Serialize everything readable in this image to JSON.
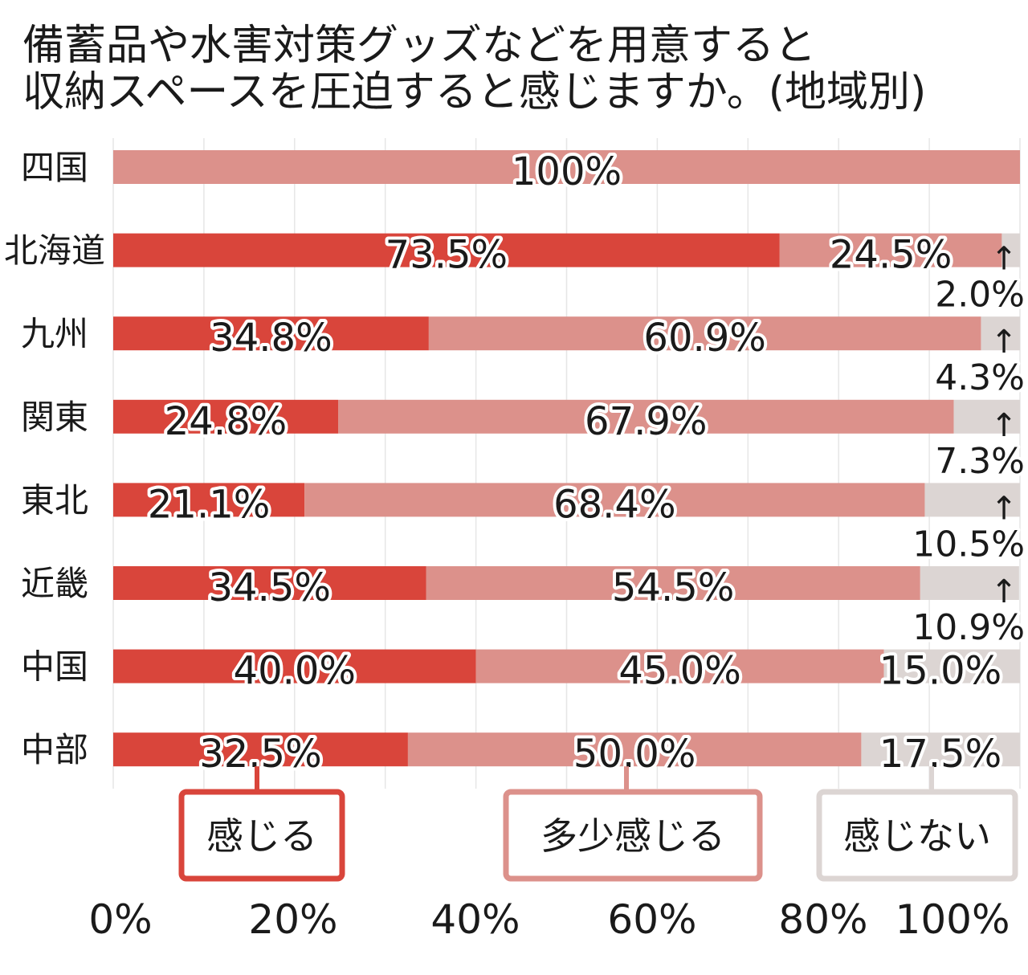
{
  "chart_data": {
    "type": "bar",
    "orientation": "horizontal",
    "stacked": true,
    "title": [
      "備蓄品や水害対策グッズなどを用意すると",
      "収納スペースを圧迫すると感じますか。(地域別)"
    ],
    "categories": [
      "四国",
      "北海道",
      "九州",
      "関東",
      "東北",
      "近畿",
      "中国",
      "中部"
    ],
    "series": [
      {
        "name": "感じる",
        "color": "#d9453b",
        "values": [
          0,
          73.5,
          34.8,
          24.8,
          21.1,
          34.5,
          40.0,
          32.5
        ]
      },
      {
        "name": "多少感じる",
        "color": "#dc918b",
        "values": [
          100,
          24.5,
          60.9,
          67.9,
          68.4,
          54.5,
          45.0,
          50.0
        ]
      },
      {
        "name": "感じない",
        "color": "#dcd5d3",
        "values": [
          0,
          2.0,
          4.3,
          7.3,
          10.5,
          10.9,
          15.0,
          17.5
        ]
      }
    ],
    "xlim": [
      0,
      100
    ],
    "x_ticks": [
      "0%",
      "20%",
      "40%",
      "60%",
      "80%",
      "100%"
    ],
    "value_suffix": "%",
    "grid": true,
    "legend_position": "bottom"
  }
}
